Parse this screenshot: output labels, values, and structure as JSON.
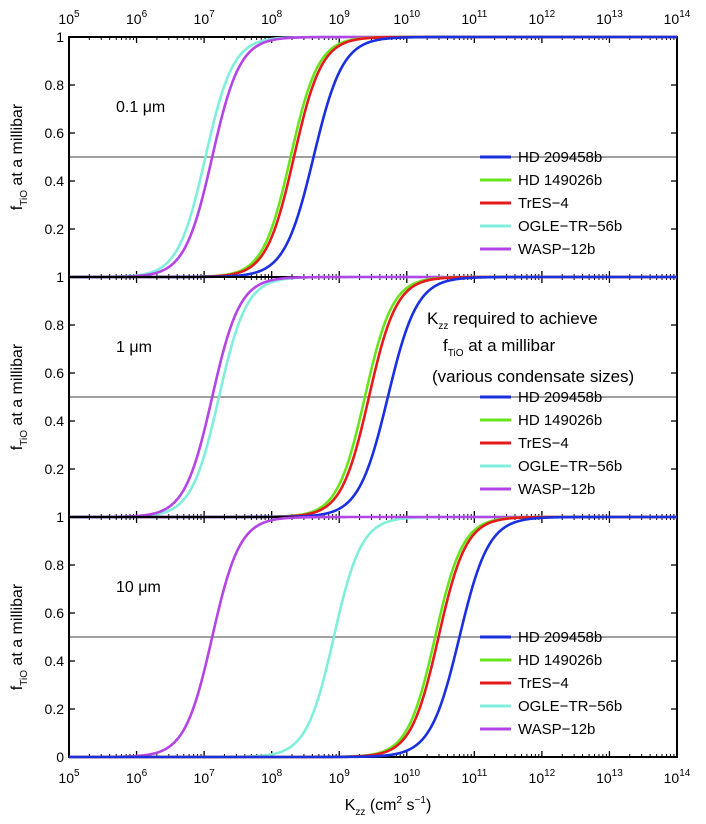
{
  "chart_data": {
    "type": "line",
    "xscale": "log",
    "xlabel": {
      "main": "K",
      "sub": "zz",
      "rest": " (cm",
      "sup": "2",
      "rest2": " s",
      "sup2": "−1",
      "end": ")"
    },
    "ylabel": {
      "main": "f",
      "sub": "TiO",
      "rest": " at a millibar"
    },
    "xlim_exp": [
      5,
      14
    ],
    "ylim": [
      0,
      1
    ],
    "x_tick_exponents": [
      5,
      6,
      7,
      8,
      9,
      10,
      11,
      12,
      13,
      14
    ],
    "x_tick_base": "10",
    "y_ticks": [
      "0.2",
      "0.4",
      "0.6",
      "0.8",
      "1"
    ],
    "bottom_y_ticks": [
      "0",
      "0.2",
      "0.4",
      "0.6",
      "0.8",
      "1"
    ],
    "reference_line_y": 0.5,
    "annotation": {
      "line1_main": "K",
      "line1_sub": "zz",
      "line1_rest": " required to achieve",
      "line2_main": "f",
      "line2_sub": "TiO",
      "line2_rest": " at a millibar",
      "line3": "(various condensate sizes)"
    },
    "panels": [
      {
        "label": "0.1 μm",
        "series": [
          {
            "name": "HD 209458b",
            "color": "#1a2fe0",
            "half_log10_kzz": 8.62,
            "width_decades": 0.95
          },
          {
            "name": "HD 149026b",
            "color": "#66e61a",
            "half_log10_kzz": 8.28,
            "width_decades": 0.9
          },
          {
            "name": "TrES−4",
            "color": "#e61a1a",
            "half_log10_kzz": 8.33,
            "width_decades": 0.9
          },
          {
            "name": "OGLE−TR−56b",
            "color": "#7fefdc",
            "half_log10_kzz": 7.02,
            "width_decades": 0.9
          },
          {
            "name": "WASP−12b",
            "color": "#b444e6",
            "half_log10_kzz": 7.12,
            "width_decades": 0.9
          }
        ]
      },
      {
        "label": "1 μm",
        "series": [
          {
            "name": "HD 209458b",
            "color": "#1a2fe0",
            "half_log10_kzz": 9.72,
            "width_decades": 0.95
          },
          {
            "name": "HD 149026b",
            "color": "#66e61a",
            "half_log10_kzz": 9.38,
            "width_decades": 0.9
          },
          {
            "name": "TrES−4",
            "color": "#e61a1a",
            "half_log10_kzz": 9.44,
            "width_decades": 0.9
          },
          {
            "name": "OGLE−TR−56b",
            "color": "#7fefdc",
            "half_log10_kzz": 7.22,
            "width_decades": 0.9
          },
          {
            "name": "WASP−12b",
            "color": "#b444e6",
            "half_log10_kzz": 7.12,
            "width_decades": 0.9
          }
        ]
      },
      {
        "label": "10 μm",
        "series": [
          {
            "name": "HD 209458b",
            "color": "#1a2fe0",
            "half_log10_kzz": 10.78,
            "width_decades": 0.95
          },
          {
            "name": "HD 149026b",
            "color": "#66e61a",
            "half_log10_kzz": 10.42,
            "width_decades": 0.9
          },
          {
            "name": "TrES−4",
            "color": "#e61a1a",
            "half_log10_kzz": 10.47,
            "width_decades": 0.9
          },
          {
            "name": "OGLE−TR−56b",
            "color": "#7fefdc",
            "half_log10_kzz": 8.92,
            "width_decades": 0.9
          },
          {
            "name": "WASP−12b",
            "color": "#b444e6",
            "half_log10_kzz": 7.12,
            "width_decades": 0.9
          }
        ]
      }
    ]
  }
}
